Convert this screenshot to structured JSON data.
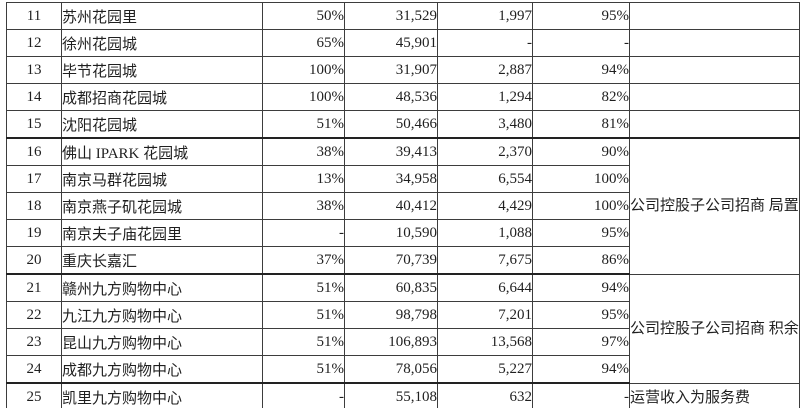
{
  "document": {
    "kind": "report-table-fragment",
    "language": "zh-CN",
    "text_color": "#1f1f1f",
    "grid_color": "#3d3d3d",
    "background_color": "#ffffff"
  },
  "table": {
    "visible_row_range": "11-25",
    "rows": [
      [
        "11",
        "苏州花园里",
        "50%",
        "31,529",
        "1,997",
        "95%"
      ],
      [
        "12",
        "徐州花园城",
        "65%",
        "45,901",
        "-",
        "-"
      ],
      [
        "13",
        "毕节花园城",
        "100%",
        "31,907",
        "2,887",
        "94%"
      ],
      [
        "14",
        "成都招商花园城",
        "100%",
        "48,536",
        "1,294",
        "82%"
      ],
      [
        "15",
        "沈阳花园城",
        "51%",
        "50,466",
        "3,480",
        "81%"
      ],
      [
        "16",
        "佛山 IPARK 花园城",
        "38%",
        "39,413",
        "2,370",
        "90%"
      ],
      [
        "17",
        "南京马群花园城",
        "13%",
        "34,958",
        "6,554",
        "100%"
      ],
      [
        "18",
        "南京燕子矶花园城",
        "38%",
        "40,412",
        "4,429",
        "100%"
      ],
      [
        "19",
        "南京夫子庙花园里",
        "-",
        "10,590",
        "1,088",
        "95%"
      ],
      [
        "20",
        "重庆长嘉汇",
        "37%",
        "70,739",
        "7,675",
        "86%"
      ],
      [
        "21",
        "赣州九方购物中心",
        "51%",
        "60,835",
        "6,644",
        "94%"
      ],
      [
        "22",
        "九江九方购物中心",
        "51%",
        "98,798",
        "7,201",
        "95%"
      ],
      [
        "23",
        "昆山九方购物中心",
        "51%",
        "106,893",
        "13,568",
        "97%"
      ],
      [
        "24",
        "成都九方购物中心",
        "51%",
        "78,056",
        "5,227",
        "94%"
      ],
      [
        "25",
        "凯里九方购物中心",
        "-",
        "55,108",
        "632",
        "-"
      ]
    ],
    "notes": [
      {
        "start_row": "11",
        "span": 1,
        "text": ""
      },
      {
        "start_row": "12",
        "span": 1,
        "text": ""
      },
      {
        "start_row": "13",
        "span": 1,
        "text": ""
      },
      {
        "start_row": "14",
        "span": 1,
        "text": ""
      },
      {
        "start_row": "15",
        "span": 1,
        "text": ""
      },
      {
        "start_row": "16",
        "span": 5,
        "text": "公司控股子公司招商\n局置地持有"
      },
      {
        "start_row": "21",
        "span": 4,
        "text": "公司控股子公司招商\n积余持有"
      },
      {
        "start_row": "25",
        "span": 1,
        "text": "运营收入为服务费"
      }
    ]
  }
}
